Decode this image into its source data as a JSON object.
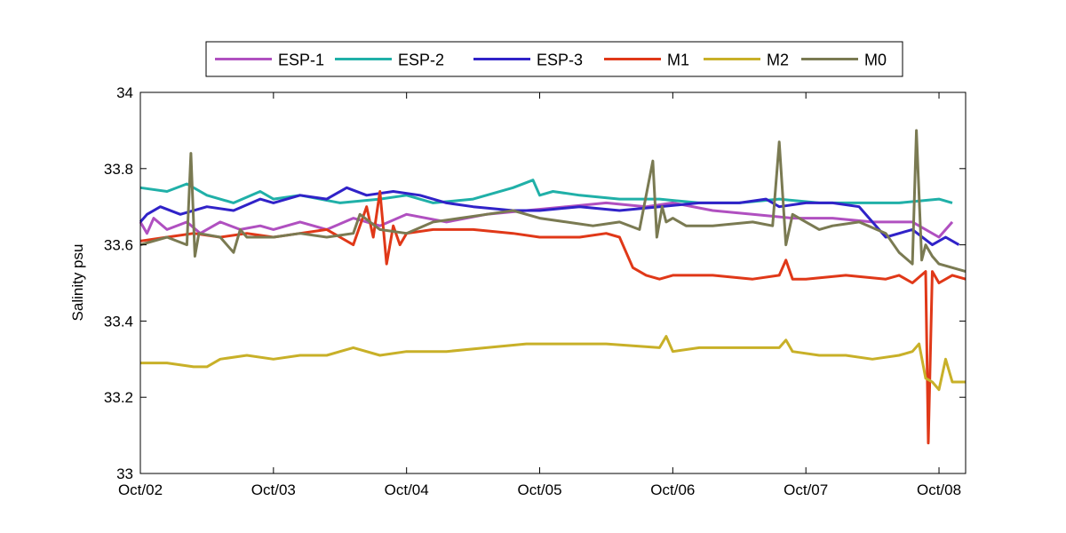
{
  "chart_data": {
    "type": "line",
    "title": "",
    "xlabel": "",
    "ylabel": "Salinity psu",
    "x_unit": "days since Oct/02",
    "xlim": [
      0,
      6.2
    ],
    "ylim": [
      33,
      34
    ],
    "x_ticks": [
      0,
      1,
      2,
      3,
      4,
      5,
      6
    ],
    "x_tick_labels": [
      "Oct/02",
      "Oct/03",
      "Oct/04",
      "Oct/05",
      "Oct/06",
      "Oct/07",
      "Oct/08"
    ],
    "y_ticks": [
      33,
      33.2,
      33.4,
      33.6,
      33.8,
      34
    ],
    "y_tick_labels": [
      "33",
      "33.2",
      "33.4",
      "33.6",
      "33.8",
      "34"
    ],
    "grid": false,
    "legend_position": "top-center, horizontal",
    "series": [
      {
        "name": "ESP-1",
        "color": "#b050c0",
        "x": [
          0.0,
          0.05,
          0.1,
          0.2,
          0.35,
          0.45,
          0.6,
          0.75,
          0.9,
          1.0,
          1.2,
          1.4,
          1.6,
          1.8,
          2.0,
          2.3,
          2.6,
          2.9,
          3.2,
          3.5,
          3.8,
          4.0,
          4.3,
          4.6,
          4.9,
          5.2,
          5.5,
          5.8,
          6.0,
          6.1
        ],
        "y": [
          33.66,
          33.63,
          33.67,
          33.64,
          33.66,
          33.63,
          33.66,
          33.64,
          33.65,
          33.64,
          33.66,
          33.64,
          33.67,
          33.65,
          33.68,
          33.66,
          33.68,
          33.69,
          33.7,
          33.71,
          33.7,
          33.71,
          33.69,
          33.68,
          33.67,
          33.67,
          33.66,
          33.66,
          33.62,
          33.66
        ]
      },
      {
        "name": "ESP-2",
        "color": "#20b0a8",
        "x": [
          0.0,
          0.2,
          0.35,
          0.5,
          0.7,
          0.9,
          1.0,
          1.2,
          1.5,
          1.8,
          2.0,
          2.2,
          2.5,
          2.8,
          2.95,
          3.0,
          3.1,
          3.3,
          3.6,
          3.9,
          4.2,
          4.5,
          4.8,
          5.1,
          5.4,
          5.7,
          6.0,
          6.1
        ],
        "y": [
          33.75,
          33.74,
          33.76,
          33.73,
          33.71,
          33.74,
          33.72,
          33.73,
          33.71,
          33.72,
          33.73,
          33.71,
          33.72,
          33.75,
          33.77,
          33.73,
          33.74,
          33.73,
          33.72,
          33.72,
          33.71,
          33.71,
          33.72,
          33.71,
          33.71,
          33.71,
          33.72,
          33.71
        ]
      },
      {
        "name": "ESP-3",
        "color": "#3022c8",
        "x": [
          0.0,
          0.05,
          0.15,
          0.3,
          0.5,
          0.7,
          0.9,
          1.0,
          1.2,
          1.4,
          1.55,
          1.7,
          1.9,
          2.1,
          2.3,
          2.5,
          2.8,
          3.0,
          3.3,
          3.6,
          3.9,
          4.2,
          4.5,
          4.7,
          4.8,
          5.0,
          5.2,
          5.4,
          5.6,
          5.8,
          5.95,
          6.05,
          6.15
        ],
        "y": [
          33.66,
          33.68,
          33.7,
          33.68,
          33.7,
          33.69,
          33.72,
          33.71,
          33.73,
          33.72,
          33.75,
          33.73,
          33.74,
          33.73,
          33.71,
          33.7,
          33.69,
          33.69,
          33.7,
          33.69,
          33.7,
          33.71,
          33.71,
          33.72,
          33.7,
          33.71,
          33.71,
          33.7,
          33.62,
          33.64,
          33.6,
          33.62,
          33.6
        ]
      },
      {
        "name": "M1",
        "color": "#e03818",
        "x": [
          0.0,
          0.2,
          0.4,
          0.6,
          0.8,
          1.0,
          1.2,
          1.4,
          1.5,
          1.6,
          1.7,
          1.75,
          1.8,
          1.85,
          1.9,
          1.95,
          2.0,
          2.2,
          2.5,
          2.8,
          3.0,
          3.3,
          3.5,
          3.6,
          3.65,
          3.7,
          3.8,
          3.9,
          4.0,
          4.3,
          4.6,
          4.8,
          4.85,
          4.9,
          5.0,
          5.3,
          5.6,
          5.7,
          5.8,
          5.9,
          5.92,
          5.95,
          6.0,
          6.1,
          6.2
        ],
        "y": [
          33.61,
          33.62,
          33.63,
          33.62,
          33.63,
          33.62,
          33.63,
          33.64,
          33.62,
          33.6,
          33.7,
          33.62,
          33.74,
          33.55,
          33.65,
          33.6,
          33.63,
          33.64,
          33.64,
          33.63,
          33.62,
          33.62,
          33.63,
          33.62,
          33.58,
          33.54,
          33.52,
          33.51,
          33.52,
          33.52,
          33.51,
          33.52,
          33.56,
          33.51,
          33.51,
          33.52,
          33.51,
          33.52,
          33.5,
          33.53,
          33.08,
          33.53,
          33.5,
          33.52,
          33.51
        ]
      },
      {
        "name": "M2",
        "color": "#c8b028",
        "x": [
          0.0,
          0.2,
          0.4,
          0.5,
          0.6,
          0.8,
          1.0,
          1.2,
          1.4,
          1.6,
          1.8,
          2.0,
          2.3,
          2.6,
          2.9,
          3.2,
          3.5,
          3.9,
          3.95,
          4.0,
          4.2,
          4.5,
          4.8,
          4.85,
          4.9,
          5.1,
          5.3,
          5.5,
          5.7,
          5.8,
          5.85,
          5.9,
          5.95,
          6.0,
          6.05,
          6.1,
          6.2
        ],
        "y": [
          33.29,
          33.29,
          33.28,
          33.28,
          33.3,
          33.31,
          33.3,
          33.31,
          33.31,
          33.33,
          33.31,
          33.32,
          33.32,
          33.33,
          33.34,
          33.34,
          33.34,
          33.33,
          33.36,
          33.32,
          33.33,
          33.33,
          33.33,
          33.35,
          33.32,
          33.31,
          33.31,
          33.3,
          33.31,
          33.32,
          33.34,
          33.25,
          33.24,
          33.22,
          33.3,
          33.24,
          33.24
        ]
      },
      {
        "name": "M0",
        "color": "#7a7a52",
        "x": [
          0.0,
          0.2,
          0.35,
          0.38,
          0.41,
          0.44,
          0.6,
          0.7,
          0.75,
          0.8,
          1.0,
          1.2,
          1.4,
          1.6,
          1.65,
          1.8,
          2.0,
          2.2,
          2.4,
          2.6,
          2.8,
          3.0,
          3.2,
          3.4,
          3.6,
          3.75,
          3.85,
          3.88,
          3.92,
          3.95,
          4.0,
          4.1,
          4.3,
          4.6,
          4.75,
          4.8,
          4.85,
          4.9,
          5.0,
          5.1,
          5.2,
          5.4,
          5.6,
          5.7,
          5.8,
          5.83,
          5.87,
          5.9,
          5.95,
          6.0,
          6.2
        ],
        "y": [
          33.6,
          33.62,
          33.6,
          33.84,
          33.57,
          33.63,
          33.62,
          33.58,
          33.64,
          33.62,
          33.62,
          33.63,
          33.62,
          33.63,
          33.68,
          33.64,
          33.63,
          33.66,
          33.67,
          33.68,
          33.69,
          33.67,
          33.66,
          33.65,
          33.66,
          33.64,
          33.82,
          33.62,
          33.7,
          33.66,
          33.67,
          33.65,
          33.65,
          33.66,
          33.65,
          33.87,
          33.6,
          33.68,
          33.66,
          33.64,
          33.65,
          33.66,
          33.63,
          33.58,
          33.55,
          33.9,
          33.56,
          33.6,
          33.57,
          33.55,
          33.53
        ]
      }
    ]
  }
}
